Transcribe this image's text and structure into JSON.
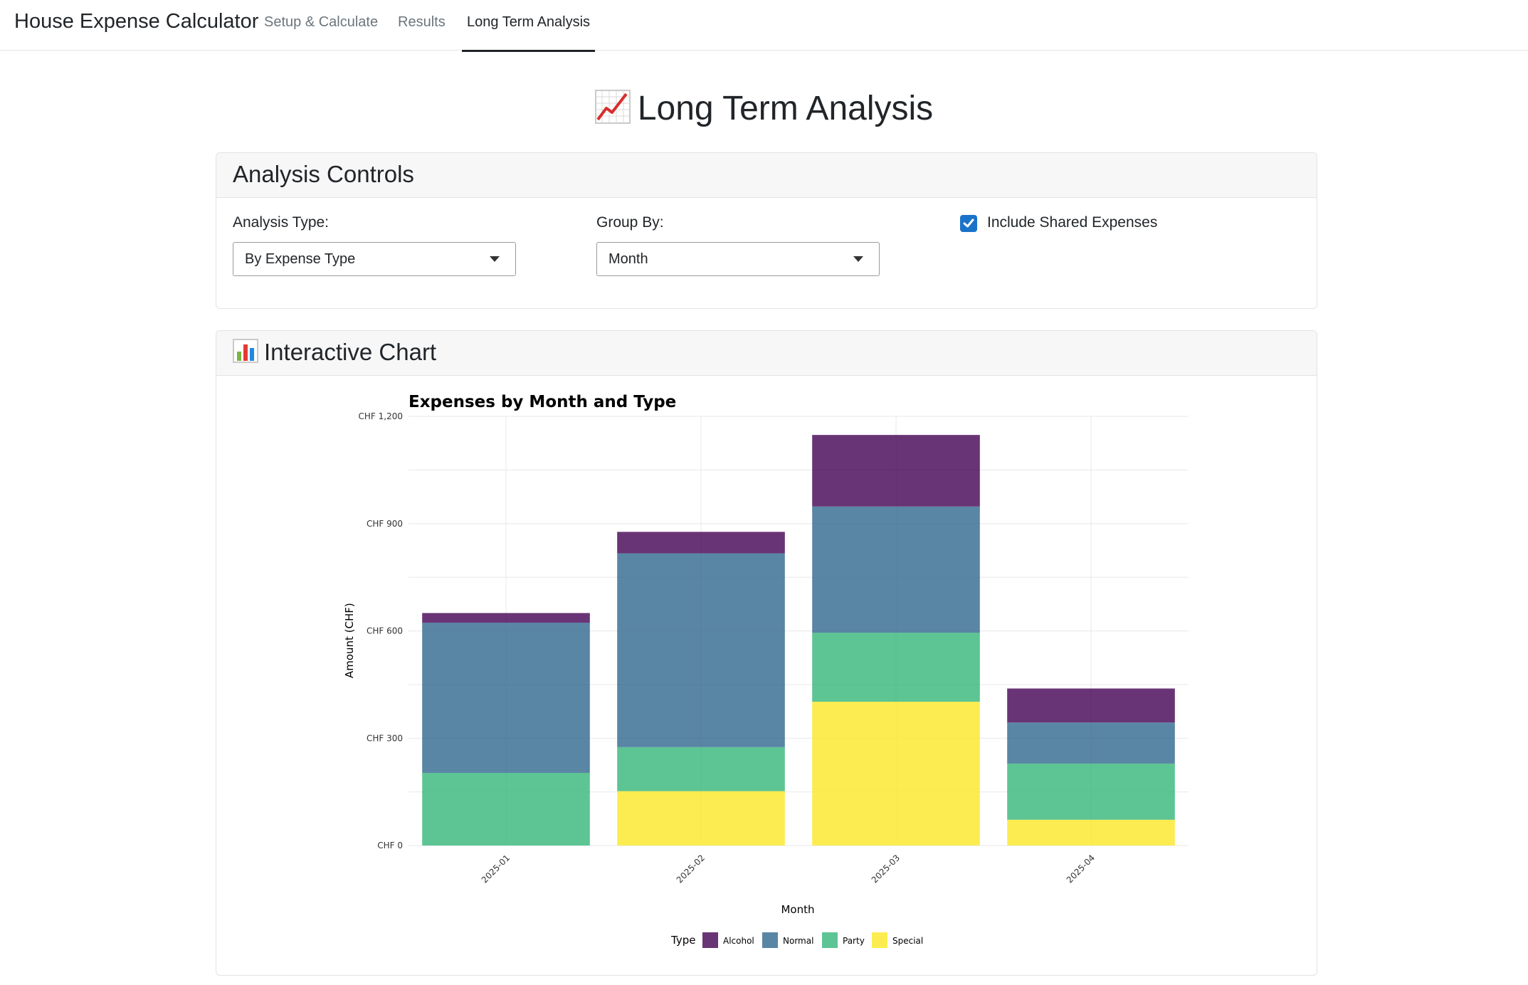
{
  "app": {
    "brand": "House Expense Calculator",
    "tabs": [
      {
        "label": "Setup & Calculate"
      },
      {
        "label": "Results"
      },
      {
        "label": "Long Term Analysis"
      }
    ]
  },
  "page": {
    "title": "Long Term Analysis",
    "title_icon": "chart-increasing-icon"
  },
  "controls": {
    "header": "Analysis Controls",
    "analysis_type_label": "Analysis Type:",
    "analysis_type_value": "By Expense Type",
    "group_by_label": "Group By:",
    "group_by_value": "Month",
    "include_shared_label": "Include Shared Expenses",
    "include_shared_checked": true
  },
  "chart_card": {
    "header": "Interactive Chart",
    "header_icon": "bar-chart-icon"
  },
  "chart_data": {
    "type": "bar",
    "stacked": true,
    "title": "Expenses by Month and Type",
    "xlabel": "Month",
    "ylabel": "Amount (CHF)",
    "ylim": [
      0,
      1200
    ],
    "y_ticks": [
      "CHF 0",
      "CHF 300",
      "CHF 600",
      "CHF 900",
      "CHF 1,200"
    ],
    "y_tick_values": [
      0,
      300,
      600,
      900,
      1200
    ],
    "categories": [
      "2025-01",
      "2025-02",
      "2025-03",
      "2025-04"
    ],
    "legend_title": "Type",
    "legend_position": "bottom",
    "series": [
      {
        "name": "Special",
        "color": "#fde725",
        "values": [
          0,
          152,
          402,
          72
        ]
      },
      {
        "name": "Party",
        "color": "#35b779",
        "values": [
          203,
          123,
          193,
          157
        ]
      },
      {
        "name": "Normal",
        "color": "#31688e",
        "values": [
          420,
          542,
          353,
          115
        ]
      },
      {
        "name": "Alcohol",
        "color": "#440154",
        "values": [
          27,
          60,
          200,
          95
        ]
      }
    ],
    "legend_order": [
      "Alcohol",
      "Normal",
      "Party",
      "Special"
    ]
  }
}
